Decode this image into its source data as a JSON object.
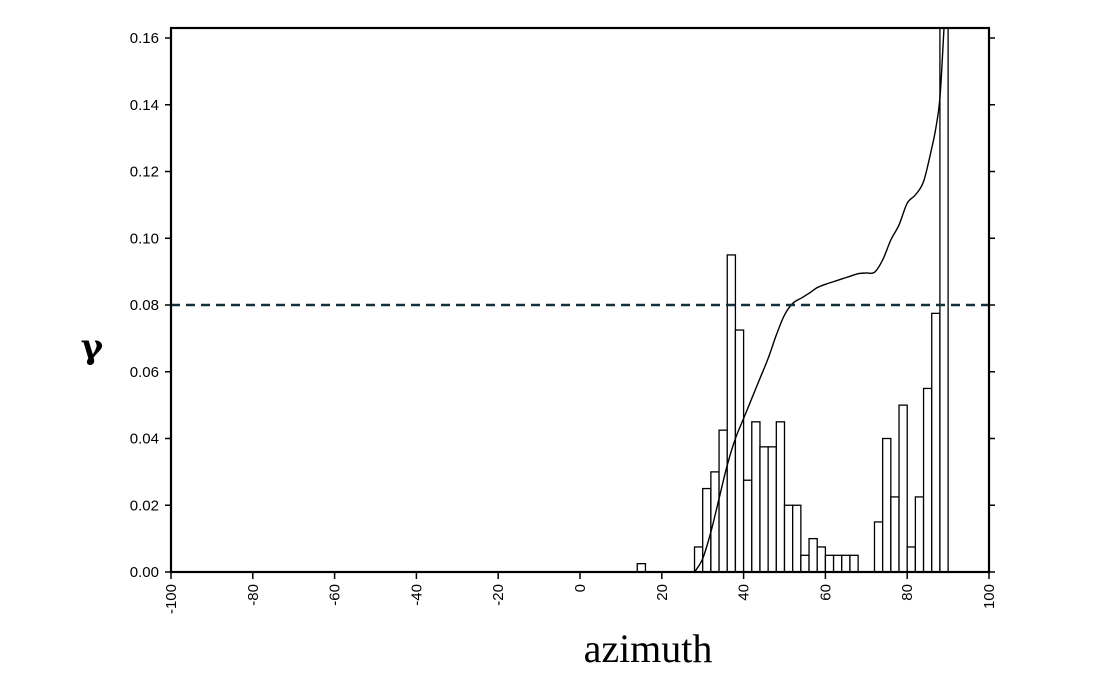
{
  "chart_data": {
    "type": "bar",
    "xlabel": "azimuth",
    "ylabel": "γ",
    "title": "",
    "xlim": [
      -100,
      100
    ],
    "ylim": [
      0,
      0.163
    ],
    "x_ticks": [
      -100,
      -80,
      -60,
      -40,
      -20,
      0,
      20,
      40,
      60,
      80,
      100
    ],
    "x_tick_labels": [
      "-100",
      "-80",
      "-60",
      "-40",
      "-20",
      "0",
      "20",
      "40",
      "60",
      "80",
      "100"
    ],
    "y_ticks": [
      0,
      0.02,
      0.04,
      0.06,
      0.08,
      0.1,
      0.12,
      0.14,
      0.16
    ],
    "y_tick_labels": [
      "0.00",
      "0.02",
      "0.04",
      "0.06",
      "0.08",
      "0.10",
      "0.12",
      "0.14",
      "0.16"
    ],
    "grid": false,
    "bin_width": 2,
    "bars": {
      "centers": [
        15,
        29,
        31,
        33,
        35,
        37,
        39,
        41,
        43,
        45,
        47,
        49,
        51,
        53,
        55,
        57,
        59,
        61,
        63,
        65,
        67,
        73,
        75,
        77,
        79,
        81,
        83,
        85,
        87,
        89
      ],
      "values": [
        0.0025,
        0.0075,
        0.025,
        0.03,
        0.0425,
        0.095,
        0.0725,
        0.0275,
        0.045,
        0.0375,
        0.0375,
        0.045,
        0.02,
        0.02,
        0.005,
        0.01,
        0.0075,
        0.005,
        0.005,
        0.005,
        0.005,
        0.015,
        0.04,
        0.0225,
        0.05,
        0.0075,
        0.0225,
        0.055,
        0.0775,
        0.163
      ]
    },
    "curve": {
      "x": [
        28,
        30,
        32,
        34,
        36,
        38,
        40,
        42,
        44,
        46,
        48,
        50,
        52,
        54,
        56,
        58,
        60,
        62,
        64,
        66,
        68,
        70,
        72,
        74,
        76,
        78,
        80,
        82,
        84,
        86,
        87,
        88,
        89
      ],
      "y": [
        0.0,
        0.004,
        0.012,
        0.022,
        0.032,
        0.04,
        0.046,
        0.052,
        0.058,
        0.064,
        0.071,
        0.077,
        0.0805,
        0.082,
        0.0835,
        0.0852,
        0.0862,
        0.087,
        0.0878,
        0.0886,
        0.0894,
        0.0896,
        0.0898,
        0.0935,
        0.0995,
        0.104,
        0.1105,
        0.113,
        0.117,
        0.127,
        0.133,
        0.142,
        0.163
      ]
    },
    "threshold": 0.08
  }
}
